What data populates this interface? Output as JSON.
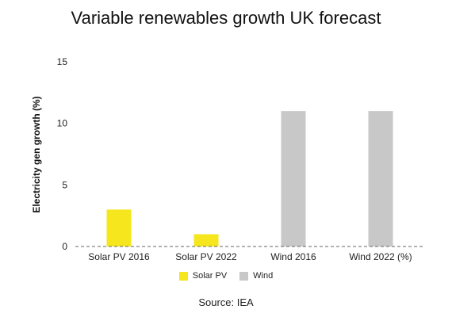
{
  "chart_data": {
    "type": "bar",
    "title": "Variable renewables growth UK forecast",
    "ylabel": "Electricity gen growth (%)",
    "xlabel": "",
    "ylim": [
      0,
      15
    ],
    "yticks": [
      "0",
      "5",
      "10",
      "15"
    ],
    "categories": [
      "Solar PV 2016",
      "Solar PV 2022",
      "Wind 2016",
      "Wind 2022 (%)"
    ],
    "series": [
      {
        "name": "Solar PV",
        "color": "#f5e61e",
        "values": [
          3,
          1,
          null,
          null
        ]
      },
      {
        "name": "Wind",
        "color": "#c8c8c8",
        "values": [
          null,
          null,
          11,
          11
        ]
      }
    ],
    "grid": false,
    "legend_position": "bottom",
    "source": "Source: IEA"
  }
}
